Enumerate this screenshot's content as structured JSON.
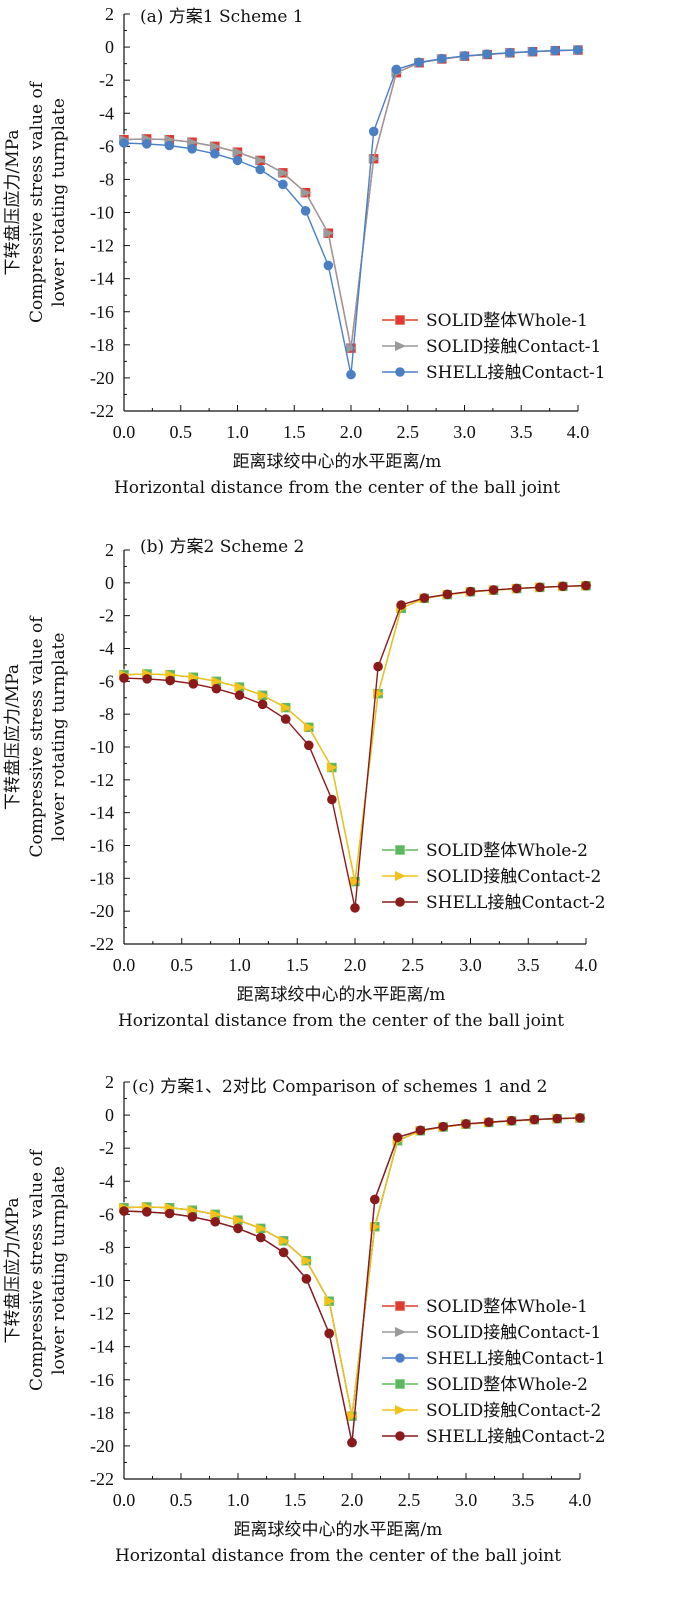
{
  "chart_data": [
    {
      "type": "line",
      "title": "(a) 方案1 Scheme 1",
      "xlabel_cn": "距离球绞中心的水平距离/m",
      "xlabel_en": "Horizontal distance from the center of the ball joint",
      "ylabel_cn": "下转盘压应力/MPa",
      "ylabel_en_1": "Compressive stress value of",
      "ylabel_en_2": "lower rotating turnplate",
      "xlim": [
        0,
        4.0
      ],
      "ylim": [
        -22,
        2
      ],
      "xticks": [
        "0.0",
        "0.5",
        "1.0",
        "1.5",
        "2.0",
        "2.5",
        "3.0",
        "3.5",
        "4.0"
      ],
      "yticks": [
        "2",
        "0",
        "-2",
        "-4",
        "-6",
        "-8",
        "-10",
        "-12",
        "-14",
        "-16",
        "-18",
        "-20",
        "-22"
      ],
      "x": [
        0,
        0.2,
        0.4,
        0.6,
        0.8,
        1.0,
        1.2,
        1.4,
        1.6,
        1.8,
        2.0,
        2.2,
        2.4,
        2.6,
        2.8,
        3.0,
        3.2,
        3.4,
        3.6,
        3.8,
        4.0
      ],
      "series": [
        {
          "name": "SOLID整体Whole-1",
          "color": "#e03a2f",
          "marker": "square",
          "values": [
            -5.6,
            -5.55,
            -5.6,
            -5.75,
            -6.0,
            -6.35,
            -6.85,
            -7.6,
            -8.8,
            -11.25,
            -18.2,
            -6.75,
            -1.55,
            -0.95,
            -0.72,
            -0.55,
            -0.45,
            -0.35,
            -0.28,
            -0.22,
            -0.18
          ]
        },
        {
          "name": "SOLID接触Contact-1",
          "color": "#9a9a9a",
          "marker": "triangle",
          "values": [
            -5.6,
            -5.55,
            -5.6,
            -5.75,
            -6.0,
            -6.35,
            -6.85,
            -7.6,
            -8.8,
            -11.25,
            -18.2,
            -6.75,
            -1.55,
            -0.95,
            -0.72,
            -0.55,
            -0.45,
            -0.35,
            -0.28,
            -0.22,
            -0.18
          ]
        },
        {
          "name": "SHELL接触Contact-1",
          "color": "#4a7fc4",
          "marker": "circle",
          "values": [
            -5.8,
            -5.85,
            -5.95,
            -6.15,
            -6.45,
            -6.85,
            -7.4,
            -8.3,
            -9.9,
            -13.2,
            -19.8,
            -5.1,
            -1.35,
            -0.92,
            -0.7,
            -0.53,
            -0.43,
            -0.34,
            -0.27,
            -0.21,
            -0.17
          ]
        }
      ],
      "legend_position": "lower-right"
    },
    {
      "type": "line",
      "title": "(b) 方案2 Scheme 2",
      "xlabel_cn": "距离球绞中心的水平距离/m",
      "xlabel_en": "Horizontal distance from the center of the ball joint",
      "ylabel_cn": "下转盘压应力/MPa",
      "ylabel_en_1": "Compressive stress value of",
      "ylabel_en_2": "lower rotating turnplate",
      "xlim": [
        0,
        4.0
      ],
      "ylim": [
        -22,
        2
      ],
      "xticks": [
        "0.0",
        "0.5",
        "1.0",
        "1.5",
        "2.0",
        "2.5",
        "3.0",
        "3.5",
        "4.0"
      ],
      "yticks": [
        "2",
        "0",
        "-2",
        "-4",
        "-6",
        "-8",
        "-10",
        "-12",
        "-14",
        "-16",
        "-18",
        "-20",
        "-22"
      ],
      "x": [
        0,
        0.2,
        0.4,
        0.6,
        0.8,
        1.0,
        1.2,
        1.4,
        1.6,
        1.8,
        2.0,
        2.2,
        2.4,
        2.6,
        2.8,
        3.0,
        3.2,
        3.4,
        3.6,
        3.8,
        4.0
      ],
      "series": [
        {
          "name": "SOLID整体Whole-2",
          "color": "#5cb85c",
          "marker": "square",
          "values": [
            -5.6,
            -5.55,
            -5.6,
            -5.75,
            -6.0,
            -6.35,
            -6.85,
            -7.6,
            -8.8,
            -11.25,
            -18.2,
            -6.75,
            -1.55,
            -0.95,
            -0.72,
            -0.55,
            -0.45,
            -0.35,
            -0.28,
            -0.22,
            -0.18
          ]
        },
        {
          "name": "SOLID接触Contact-2",
          "color": "#f2c21b",
          "marker": "triangle",
          "values": [
            -5.6,
            -5.55,
            -5.6,
            -5.75,
            -6.0,
            -6.35,
            -6.85,
            -7.6,
            -8.8,
            -11.25,
            -18.2,
            -6.75,
            -1.55,
            -0.95,
            -0.72,
            -0.55,
            -0.45,
            -0.35,
            -0.28,
            -0.22,
            -0.18
          ]
        },
        {
          "name": "SHELL接触Contact-2",
          "color": "#8b1a1a",
          "marker": "circle",
          "values": [
            -5.8,
            -5.85,
            -5.95,
            -6.15,
            -6.45,
            -6.85,
            -7.4,
            -8.3,
            -9.9,
            -13.2,
            -19.8,
            -5.1,
            -1.35,
            -0.92,
            -0.7,
            -0.53,
            -0.43,
            -0.34,
            -0.27,
            -0.21,
            -0.17
          ]
        }
      ],
      "legend_position": "lower-right"
    },
    {
      "type": "line",
      "title": "(c) 方案1、2对比 Comparison of schemes 1 and 2",
      "xlabel_cn": "距离球绞中心的水平距离/m",
      "xlabel_en": "Horizontal distance from the center of the ball joint",
      "ylabel_cn": "下转盘压应力/MPa",
      "ylabel_en_1": "Compressive stress value of",
      "ylabel_en_2": "lower rotating turnplate",
      "xlim": [
        0,
        4.0
      ],
      "ylim": [
        -22,
        2
      ],
      "xticks": [
        "0.0",
        "0.5",
        "1.0",
        "1.5",
        "2.0",
        "2.5",
        "3.0",
        "3.5",
        "4.0"
      ],
      "yticks": [
        "2",
        "0",
        "-2",
        "-4",
        "-6",
        "-8",
        "-10",
        "-12",
        "-14",
        "-16",
        "-18",
        "-20",
        "-22"
      ],
      "x": [
        0,
        0.2,
        0.4,
        0.6,
        0.8,
        1.0,
        1.2,
        1.4,
        1.6,
        1.8,
        2.0,
        2.2,
        2.4,
        2.6,
        2.8,
        3.0,
        3.2,
        3.4,
        3.6,
        3.8,
        4.0
      ],
      "series": [
        {
          "name": "SOLID整体Whole-1",
          "color": "#e03a2f",
          "marker": "square",
          "values": [
            -5.6,
            -5.55,
            -5.6,
            -5.75,
            -6.0,
            -6.35,
            -6.85,
            -7.6,
            -8.8,
            -11.25,
            -18.2,
            -6.75,
            -1.55,
            -0.95,
            -0.72,
            -0.55,
            -0.45,
            -0.35,
            -0.28,
            -0.22,
            -0.18
          ]
        },
        {
          "name": "SOLID接触Contact-1",
          "color": "#9a9a9a",
          "marker": "triangle",
          "values": [
            -5.6,
            -5.55,
            -5.6,
            -5.75,
            -6.0,
            -6.35,
            -6.85,
            -7.6,
            -8.8,
            -11.25,
            -18.2,
            -6.75,
            -1.55,
            -0.95,
            -0.72,
            -0.55,
            -0.45,
            -0.35,
            -0.28,
            -0.22,
            -0.18
          ]
        },
        {
          "name": "SHELL接触Contact-1",
          "color": "#4a7fc4",
          "marker": "circle",
          "values": [
            -5.8,
            -5.85,
            -5.95,
            -6.15,
            -6.45,
            -6.85,
            -7.4,
            -8.3,
            -9.9,
            -13.2,
            -19.8,
            -5.1,
            -1.35,
            -0.92,
            -0.7,
            -0.53,
            -0.43,
            -0.34,
            -0.27,
            -0.21,
            -0.17
          ]
        },
        {
          "name": "SOLID整体Whole-2",
          "color": "#5cb85c",
          "marker": "square",
          "values": [
            -5.6,
            -5.55,
            -5.6,
            -5.75,
            -6.0,
            -6.35,
            -6.85,
            -7.6,
            -8.8,
            -11.25,
            -18.2,
            -6.75,
            -1.55,
            -0.95,
            -0.72,
            -0.55,
            -0.45,
            -0.35,
            -0.28,
            -0.22,
            -0.18
          ]
        },
        {
          "name": "SOLID接触Contact-2",
          "color": "#f2c21b",
          "marker": "triangle",
          "values": [
            -5.6,
            -5.55,
            -5.6,
            -5.75,
            -6.0,
            -6.35,
            -6.85,
            -7.6,
            -8.8,
            -11.25,
            -18.2,
            -6.75,
            -1.55,
            -0.95,
            -0.72,
            -0.55,
            -0.45,
            -0.35,
            -0.28,
            -0.22,
            -0.18
          ]
        },
        {
          "name": "SHELL接触Contact-2",
          "color": "#8b1a1a",
          "marker": "circle",
          "values": [
            -5.8,
            -5.85,
            -5.95,
            -6.15,
            -6.45,
            -6.85,
            -7.4,
            -8.3,
            -9.9,
            -13.2,
            -19.8,
            -5.1,
            -1.35,
            -0.92,
            -0.7,
            -0.53,
            -0.43,
            -0.34,
            -0.27,
            -0.21,
            -0.17
          ]
        }
      ],
      "legend_position": "lower-right"
    }
  ]
}
